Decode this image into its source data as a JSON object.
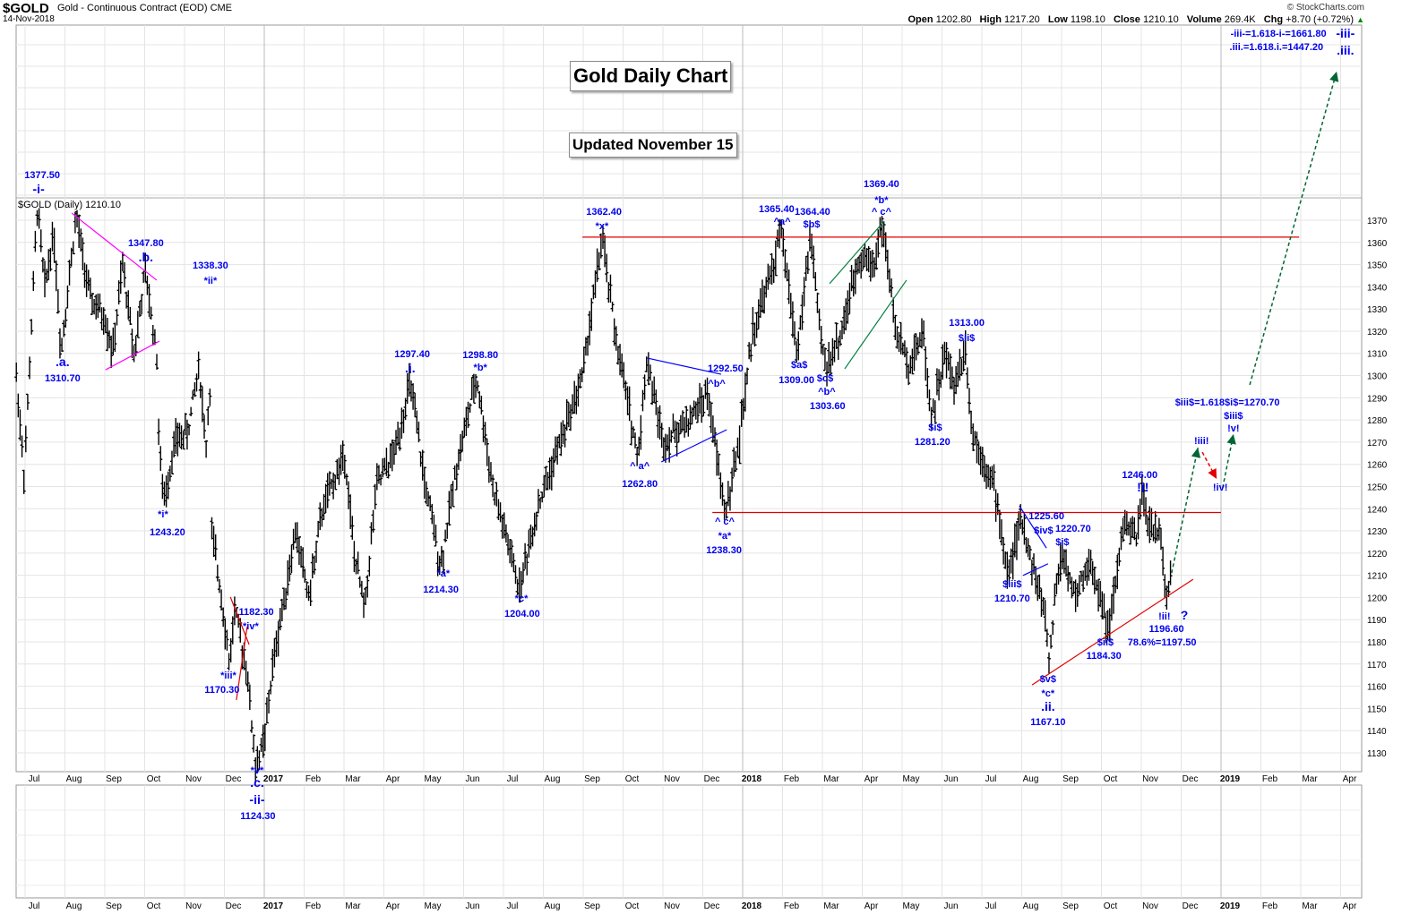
{
  "header": {
    "symbol": "$GOLD",
    "name": "Gold - Continuous Contract (EOD) CME",
    "date": "14-Nov-2018",
    "source": "© StockCharts.com",
    "open_label": "Open",
    "open": "1202.80",
    "high_label": "High",
    "high": "1217.20",
    "low_label": "Low",
    "low": "1198.10",
    "close_label": "Close",
    "close": "1210.10",
    "volume_label": "Volume",
    "volume": "269.4K",
    "chg_label": "Chg",
    "chg": "+8.70 (+0.72%)"
  },
  "boxes": {
    "title": "Gold Daily Chart",
    "updated": "Updated November 15"
  },
  "chart_data": {
    "type": "ohlc",
    "legend": "$GOLD (Daily) 1210.10",
    "ylim": [
      1125,
      1375
    ],
    "yticks": [
      1130,
      1140,
      1150,
      1160,
      1170,
      1180,
      1190,
      1200,
      1210,
      1220,
      1230,
      1240,
      1250,
      1260,
      1270,
      1280,
      1290,
      1300,
      1310,
      1320,
      1330,
      1340,
      1350,
      1360,
      1370
    ],
    "x_unit": "months since Jul 2016",
    "month_labels": [
      "Jul",
      "Aug",
      "Sep",
      "Oct",
      "Nov",
      "Dec",
      "2017",
      "Feb",
      "Mar",
      "Apr",
      "May",
      "Jun",
      "Jul",
      "Aug",
      "Sep",
      "Oct",
      "Nov",
      "Dec",
      "2018",
      "Feb",
      "Mar",
      "Apr",
      "May",
      "Jun",
      "Jul",
      "Aug",
      "Sep",
      "Oct",
      "Nov",
      "Dec",
      "2019",
      "Feb",
      "Mar",
      "Apr"
    ],
    "price_path": [
      [
        -0.22,
        1300
      ],
      [
        -0.02,
        1255
      ],
      [
        0.31,
        1377
      ],
      [
        0.49,
        1340
      ],
      [
        0.72,
        1365
      ],
      [
        0.9,
        1311
      ],
      [
        1.28,
        1372
      ],
      [
        1.62,
        1335
      ],
      [
        2.02,
        1325
      ],
      [
        2.2,
        1310
      ],
      [
        2.45,
        1350
      ],
      [
        2.74,
        1310
      ],
      [
        3.01,
        1347
      ],
      [
        3.3,
        1310
      ],
      [
        3.37,
        1265
      ],
      [
        3.48,
        1243
      ],
      [
        3.75,
        1270
      ],
      [
        4.09,
        1275
      ],
      [
        4.36,
        1305
      ],
      [
        4.58,
        1260
      ],
      [
        4.61,
        1338
      ],
      [
        4.67,
        1230
      ],
      [
        4.94,
        1200
      ],
      [
        5.12,
        1170
      ],
      [
        5.26,
        1195
      ],
      [
        5.39,
        1182
      ],
      [
        5.55,
        1170
      ],
      [
        5.78,
        1124
      ],
      [
        6.0,
        1135
      ],
      [
        6.22,
        1170
      ],
      [
        6.45,
        1195
      ],
      [
        6.79,
        1230
      ],
      [
        7.12,
        1200
      ],
      [
        7.46,
        1240
      ],
      [
        8.02,
        1265
      ],
      [
        8.25,
        1220
      ],
      [
        8.52,
        1195
      ],
      [
        8.81,
        1250
      ],
      [
        9.26,
        1265
      ],
      [
        9.66,
        1297
      ],
      [
        10.04,
        1250
      ],
      [
        10.43,
        1214
      ],
      [
        10.83,
        1260
      ],
      [
        11.33,
        1299
      ],
      [
        11.73,
        1250
      ],
      [
        12.02,
        1230
      ],
      [
        12.4,
        1204
      ],
      [
        12.85,
        1240
      ],
      [
        13.42,
        1270
      ],
      [
        13.98,
        1300
      ],
      [
        14.47,
        1362
      ],
      [
        14.88,
        1310
      ],
      [
        15.1,
        1290
      ],
      [
        15.37,
        1263
      ],
      [
        15.6,
        1308
      ],
      [
        16.0,
        1270
      ],
      [
        16.67,
        1280
      ],
      [
        17.12,
        1292
      ],
      [
        17.46,
        1250
      ],
      [
        17.57,
        1238
      ],
      [
        17.91,
        1270
      ],
      [
        18.25,
        1320
      ],
      [
        18.7,
        1345
      ],
      [
        18.97,
        1365
      ],
      [
        19.37,
        1310
      ],
      [
        19.71,
        1364
      ],
      [
        19.93,
        1320
      ],
      [
        20.09,
        1304
      ],
      [
        20.49,
        1320
      ],
      [
        20.94,
        1355
      ],
      [
        21.28,
        1350
      ],
      [
        21.51,
        1369
      ],
      [
        21.84,
        1320
      ],
      [
        22.18,
        1305
      ],
      [
        22.52,
        1320
      ],
      [
        22.74,
        1281
      ],
      [
        23.08,
        1310
      ],
      [
        23.3,
        1295
      ],
      [
        23.6,
        1313
      ],
      [
        23.75,
        1275
      ],
      [
        24.09,
        1260
      ],
      [
        24.31,
        1250
      ],
      [
        24.65,
        1210
      ],
      [
        24.99,
        1235
      ],
      [
        25.33,
        1210
      ],
      [
        25.62,
        1190
      ],
      [
        25.66,
        1167
      ],
      [
        25.84,
        1200
      ],
      [
        26.0,
        1221
      ],
      [
        26.34,
        1200
      ],
      [
        26.67,
        1215
      ],
      [
        27.01,
        1200
      ],
      [
        27.19,
        1184
      ],
      [
        27.57,
        1235
      ],
      [
        27.87,
        1225
      ],
      [
        28.02,
        1246
      ],
      [
        28.25,
        1230
      ],
      [
        28.47,
        1230
      ],
      [
        28.65,
        1197
      ],
      [
        28.74,
        1210
      ]
    ],
    "lines": [
      {
        "name": "resistance-line",
        "color": "#e00000",
        "pts": [
          [
            13.98,
            1362.4
          ],
          [
            31.96,
            1362.4
          ]
        ]
      },
      {
        "name": "support-line",
        "color": "#e00000",
        "pts": [
          [
            17.24,
            1238.3
          ],
          [
            30.0,
            1238.3
          ]
        ]
      },
      {
        "name": "triangle-upper-line",
        "color": "#ff00ff",
        "pts": [
          [
            1.17,
            1373.2
          ],
          [
            3.3,
            1343
          ]
        ]
      },
      {
        "name": "triangle-lower-line",
        "color": "#ff00ff",
        "pts": [
          [
            2.02,
            1302.6
          ],
          [
            3.37,
            1315.5
          ]
        ]
      },
      {
        "name": "wedge-line-1",
        "color": "#e00000",
        "pts": [
          [
            5.15,
            1200.2
          ],
          [
            5.62,
            1178.8
          ]
        ]
      },
      {
        "name": "wedge-line-2",
        "color": "#e00000",
        "pts": [
          [
            5.3,
            1153.8
          ],
          [
            5.57,
            1186.8
          ]
        ]
      },
      {
        "name": "triangle-2-upper",
        "color": "#0000ff",
        "pts": [
          [
            15.6,
            1307.9
          ],
          [
            17.46,
            1300.6
          ]
        ]
      },
      {
        "name": "triangle-2-lower",
        "color": "#0000ff",
        "pts": [
          [
            15.96,
            1261.1
          ],
          [
            17.6,
            1275.6
          ]
        ]
      },
      {
        "name": "channel-upper",
        "color": "#008040",
        "pts": [
          [
            20.18,
            1341.4
          ],
          [
            21.55,
            1369.6
          ]
        ]
      },
      {
        "name": "channel-lower",
        "color": "#008040",
        "pts": [
          [
            20.56,
            1303
          ],
          [
            22.11,
            1343
          ]
        ]
      },
      {
        "name": "wedge-3-upper",
        "color": "#0000ff",
        "pts": [
          [
            24.94,
            1241.3
          ],
          [
            25.62,
            1222.3
          ]
        ]
      },
      {
        "name": "wedge-3-lower",
        "color": "#0000ff",
        "pts": [
          [
            25.03,
            1209.9
          ],
          [
            25.66,
            1215.2
          ]
        ]
      },
      {
        "name": "uptrend-line",
        "color": "#e00000",
        "pts": [
          [
            25.26,
            1160.6
          ],
          [
            29.3,
            1208.2
          ]
        ]
      }
    ],
    "projections": [
      {
        "name": "projection-iii",
        "color": "#006633",
        "pts": [
          [
            28.76,
            1211
          ],
          [
            29.42,
            1267.5
          ]
        ]
      },
      {
        "name": "projection-iv",
        "color": "#e00000",
        "pts": [
          [
            29.53,
            1265.5
          ],
          [
            29.89,
            1253.4
          ]
        ]
      },
      {
        "name": "projection-v",
        "color": "#006633",
        "pts": [
          [
            30.04,
            1249.4
          ],
          [
            30.31,
            1273.6
          ]
        ]
      },
      {
        "name": "projection-big-iii",
        "color": "#006633",
        "pts": [
          [
            30.72,
            1295.8
          ],
          [
            32.9,
            1437
          ]
        ]
      }
    ],
    "annotations": [
      {
        "t": "1377.50",
        "m": 0.43,
        "p": 1390.6
      },
      {
        "t": "-i-",
        "m": 0.34,
        "p": 1383.7,
        "big": true
      },
      {
        "t": "1347.80",
        "m": 3.03,
        "p": 1359.9
      },
      {
        "t": ".b.",
        "m": 3.03,
        "p": 1353.1,
        "big": true
      },
      {
        "t": ".a.",
        "m": 0.94,
        "p": 1305.9,
        "big": true
      },
      {
        "t": "1310.70",
        "m": 0.94,
        "p": 1299
      },
      {
        "t": "1338.30",
        "m": 4.65,
        "p": 1349.8
      },
      {
        "t": "*ii*",
        "m": 4.65,
        "p": 1343
      },
      {
        "t": "*i*",
        "m": 3.46,
        "p": 1237.7
      },
      {
        "t": "1243.20",
        "m": 3.57,
        "p": 1229.6
      },
      {
        "t": "1182.30",
        "m": 5.8,
        "p": 1193.7
      },
      {
        "t": "*iv*",
        "m": 5.66,
        "p": 1187.3
      },
      {
        "t": "*iii*",
        "m": 5.1,
        "p": 1165.1
      },
      {
        "t": "1170.30",
        "m": 4.94,
        "p": 1158.6
      },
      {
        "t": "*v*",
        "m": 5.82,
        "p": 1122.3
      },
      {
        "t": ".c.",
        "m": 5.82,
        "p": 1116.3,
        "big": true
      },
      {
        "t": "-ii-",
        "m": 5.82,
        "p": 1108.6,
        "big": true
      },
      {
        "t": "1124.30",
        "m": 5.84,
        "p": 1101.7
      },
      {
        "t": "1297.40",
        "m": 9.71,
        "p": 1309.9
      },
      {
        "t": ".i.",
        "m": 9.66,
        "p": 1303,
        "big": true
      },
      {
        "t": "1298.80",
        "m": 11.42,
        "p": 1309.5
      },
      {
        "t": "*b*",
        "m": 11.42,
        "p": 1303.8
      },
      {
        "t": "*a*",
        "m": 10.49,
        "p": 1211.1
      },
      {
        "t": "1214.30",
        "m": 10.43,
        "p": 1203.8
      },
      {
        "t": "*c*",
        "m": 12.45,
        "p": 1199.8
      },
      {
        "t": "1204.00",
        "m": 12.47,
        "p": 1192.9
      },
      {
        "t": "1362.40",
        "m": 14.52,
        "p": 1374
      },
      {
        "t": "*x*",
        "m": 14.47,
        "p": 1367.6
      },
      {
        "t": "1292.50",
        "m": 17.57,
        "p": 1303.4
      },
      {
        "t": "^b^",
        "m": 17.35,
        "p": 1296.6
      },
      {
        "t": "^ a^",
        "m": 15.42,
        "p": 1259.5
      },
      {
        "t": "1262.80",
        "m": 15.42,
        "p": 1251.4
      },
      {
        "t": "^ c^",
        "m": 17.55,
        "p": 1234.5
      },
      {
        "t": "*a*",
        "m": 17.55,
        "p": 1228
      },
      {
        "t": "1238.30",
        "m": 17.53,
        "p": 1221.5
      },
      {
        "t": "1365.40",
        "m": 18.85,
        "p": 1375.2
      },
      {
        "t": "^a^",
        "m": 18.99,
        "p": 1369.6
      },
      {
        "t": "1364.40",
        "m": 19.75,
        "p": 1374
      },
      {
        "t": "$b$",
        "m": 19.73,
        "p": 1368.4
      },
      {
        "t": "1369.40",
        "m": 21.48,
        "p": 1386.5
      },
      {
        "t": "*b*",
        "m": 21.48,
        "p": 1379.3
      },
      {
        "t": "^ c^",
        "m": 21.48,
        "p": 1374
      },
      {
        "t": "$a$",
        "m": 19.42,
        "p": 1305
      },
      {
        "t": "1309.00",
        "m": 19.35,
        "p": 1298.2
      },
      {
        "t": "$c$",
        "m": 20.07,
        "p": 1299
      },
      {
        "t": "^b^",
        "m": 20.11,
        "p": 1292.9
      },
      {
        "t": "1303.60",
        "m": 20.13,
        "p": 1286.5
      },
      {
        "t": "1313.00",
        "m": 23.62,
        "p": 1324
      },
      {
        "t": "$ii$",
        "m": 23.62,
        "p": 1317.2
      },
      {
        "t": "$i$",
        "m": 22.83,
        "p": 1276.8
      },
      {
        "t": "1281.20",
        "m": 22.76,
        "p": 1270.4
      },
      {
        "t": "1225.60",
        "m": 25.62,
        "p": 1236.9
      },
      {
        "t": "$iv$",
        "m": 25.55,
        "p": 1230.4
      },
      {
        "t": "1220.70",
        "m": 26.29,
        "p": 1231.2
      },
      {
        "t": "$i$",
        "m": 26.02,
        "p": 1225.2
      },
      {
        "t": "$iii$",
        "m": 24.76,
        "p": 1206.2
      },
      {
        "t": "1210.70",
        "m": 24.76,
        "p": 1199.8
      },
      {
        "t": "$v$",
        "m": 25.66,
        "p": 1163.5
      },
      {
        "t": "*c*",
        "m": 25.66,
        "p": 1157
      },
      {
        "t": ".ii.",
        "m": 25.66,
        "p": 1150.5,
        "big": true
      },
      {
        "t": "1167.10",
        "m": 25.66,
        "p": 1144.1
      },
      {
        "t": "$ii$",
        "m": 27.1,
        "p": 1180
      },
      {
        "t": "1184.30",
        "m": 27.06,
        "p": 1173.9
      },
      {
        "t": "1246.00",
        "m": 27.96,
        "p": 1255.4
      },
      {
        "t": "!i!",
        "m": 28.04,
        "p": 1249.4,
        "big": true
      },
      {
        "t": "!ii!",
        "m": 28.58,
        "p": 1191.7
      },
      {
        "t": "?",
        "m": 29.08,
        "p": 1191.7,
        "big": true
      },
      {
        "t": "1196.60",
        "m": 28.63,
        "p": 1186
      },
      {
        "t": "78.6%=1197.50",
        "m": 28.52,
        "p": 1180
      },
      {
        "t": "!iii!",
        "m": 29.51,
        "p": 1270.8
      },
      {
        "t": "!iv!",
        "m": 29.98,
        "p": 1249.8
      },
      {
        "t": "$iii$=1.618$i$=1270.70",
        "m": 30.16,
        "p": 1288.1
      },
      {
        "t": "$iii$",
        "m": 30.31,
        "p": 1282
      },
      {
        "t": "!v!",
        "m": 30.31,
        "p": 1276.4
      },
      {
        "t": "-iii-=1.618-i-=1661.80",
        "m": 31.44,
        "p": 1454.3
      },
      {
        "t": ".iii.=1.618.i.=1447.20",
        "m": 31.39,
        "p": 1448.3
      },
      {
        "t": "-iii-",
        "m": 33.12,
        "p": 1453.9,
        "big": true
      },
      {
        "t": ".iii.",
        "m": 33.12,
        "p": 1446.2,
        "big": true
      }
    ]
  }
}
